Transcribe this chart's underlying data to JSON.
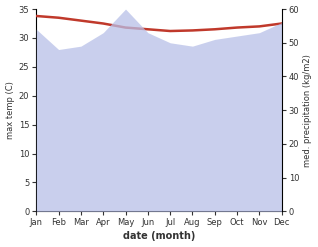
{
  "months": [
    "Jan",
    "Feb",
    "Mar",
    "Apr",
    "May",
    "Jun",
    "Jul",
    "Aug",
    "Sep",
    "Oct",
    "Nov",
    "Dec"
  ],
  "max_temp": [
    33.8,
    33.5,
    33.0,
    32.5,
    31.8,
    31.5,
    31.2,
    31.3,
    31.5,
    31.8,
    32.0,
    32.5
  ],
  "precipitation": [
    54,
    48,
    49,
    53,
    60,
    53,
    50,
    49,
    51,
    52,
    53,
    56
  ],
  "temp_color": "#c0392b",
  "precip_fill_color": "#b8c0e8",
  "temp_ylim": [
    0,
    35
  ],
  "precip_ylim": [
    0,
    60
  ],
  "xlabel": "date (month)",
  "ylabel_left": "max temp (C)",
  "ylabel_right": "med. precipitation (kg/m2)",
  "bg_color": "#ffffff",
  "left_yticks": [
    0,
    5,
    10,
    15,
    20,
    25,
    30,
    35
  ],
  "right_yticks": [
    0,
    10,
    20,
    30,
    40,
    50,
    60
  ]
}
